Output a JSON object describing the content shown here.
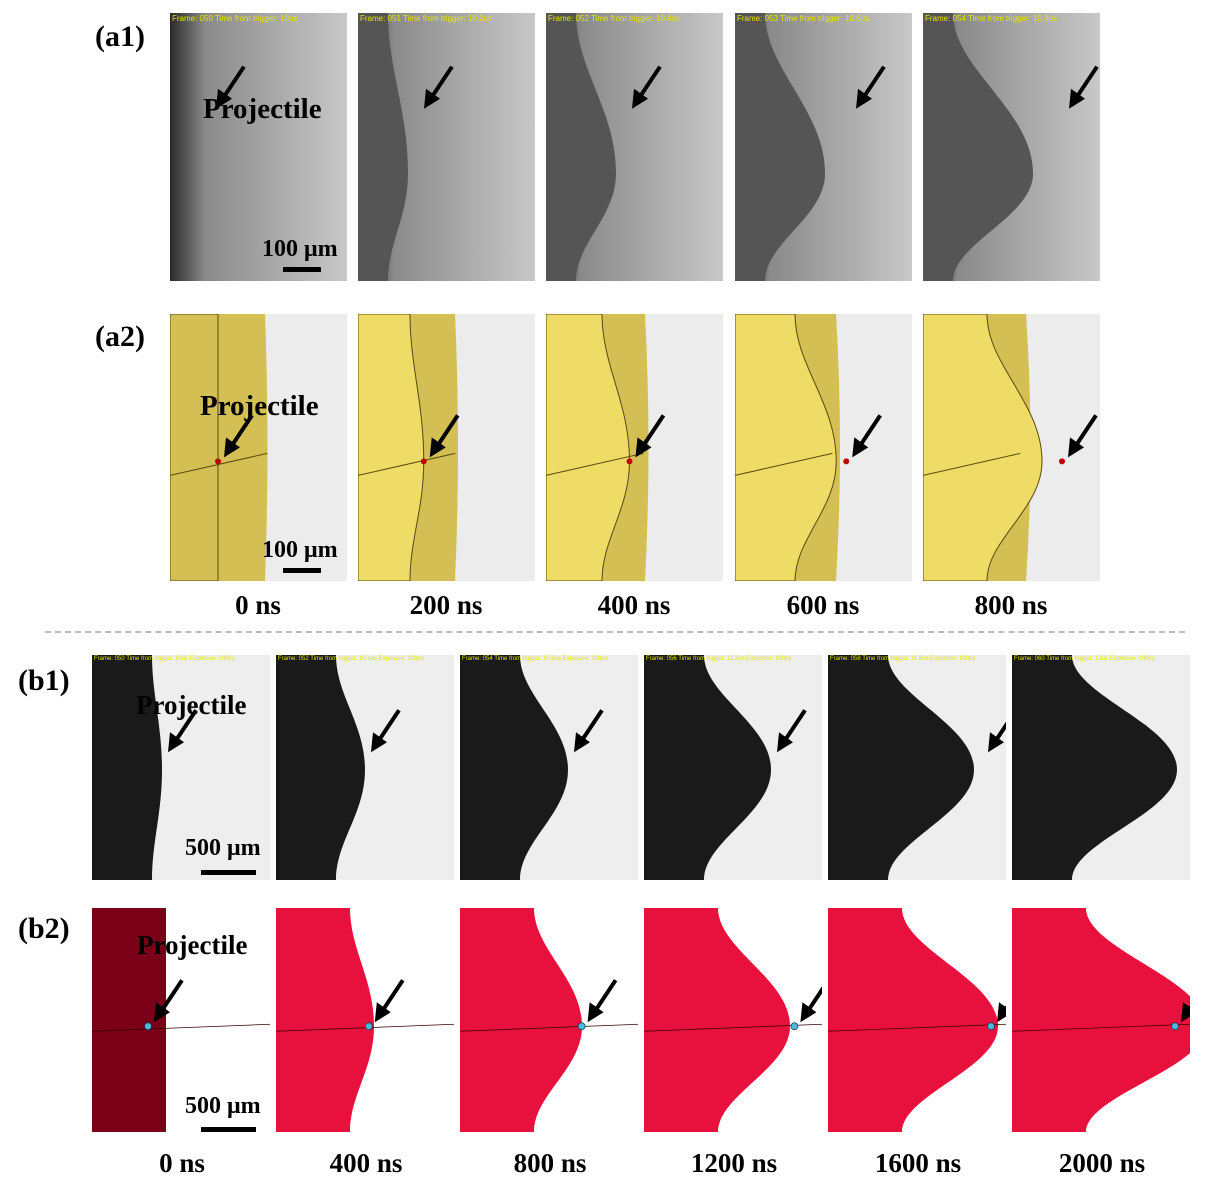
{
  "rows": {
    "a1": {
      "label": "(a1)",
      "style": "gray",
      "frames": [
        "Frame: 050  Time from trigger: 10us",
        "Frame: 051  Time from trigger: 10.2us",
        "Frame: 052  Time from trigger: 10.4us",
        "Frame: 053  Time from trigger: 10.6us",
        "Frame: 054  Time from trigger: 10.8us"
      ]
    },
    "a2": {
      "label": "(a2)",
      "style": "yellow"
    },
    "b1": {
      "label": "(b1)",
      "style": "bw",
      "frames": [
        "Frame: 050  Time from trigger: 10us    Exposure: 100ns",
        "Frame: 052  Time from trigger: 10.4us  Exposure: 100ns",
        "Frame: 054  Time from trigger: 10.8us  Exposure: 100ns",
        "Frame: 056  Time from trigger: 11.2us  Exposure: 100ns",
        "Frame: 058  Time from trigger: 11.6us  Exposure: 100ns",
        "Frame: 060  Time from trigger: 12us    Exposure: 100ns"
      ]
    },
    "b2": {
      "label": "(b2)",
      "style": "red"
    }
  },
  "annotations": {
    "projectile": "Projectile",
    "scale_a": "100 μm",
    "scale_b": "500 μm"
  },
  "times_a": [
    "0 ns",
    "200 ns",
    "400 ns",
    "600 ns",
    "800 ns"
  ],
  "times_b": [
    "0 ns",
    "400 ns",
    "800 ns",
    "1200 ns",
    "1600 ns",
    "2000 ns"
  ],
  "colors": {
    "yellow": "#d4bf55",
    "bulge_yellow": "#eedc66",
    "dark_red": "#7a0018",
    "bright_red": "#e8103c",
    "projectile_red": "#c00000",
    "projectile_cyan": "#4ab8d8",
    "hud": "#e6e600"
  }
}
